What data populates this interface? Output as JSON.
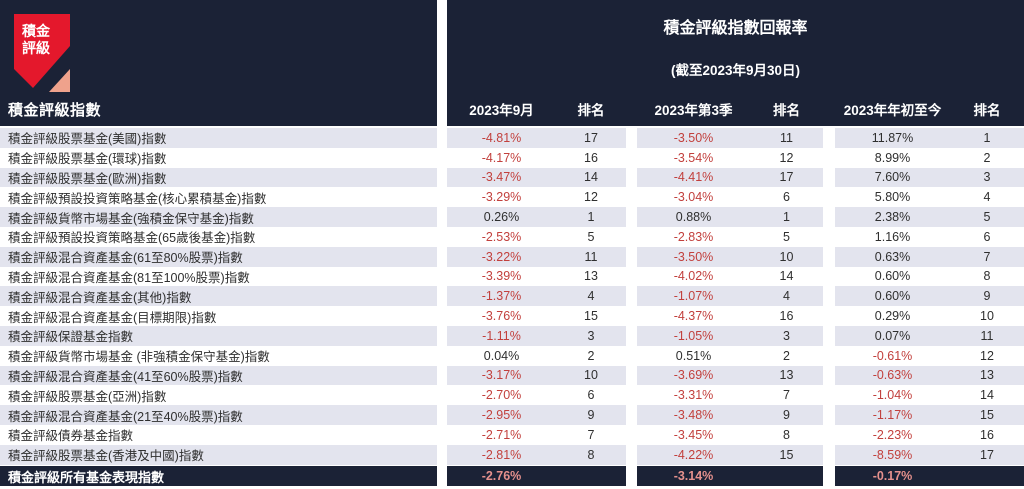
{
  "logo": {
    "line1": "積金",
    "line2": "評級"
  },
  "title_block": {
    "title": "積金評級指數回報率",
    "subtitle": "(截至2023年9月30日)"
  },
  "table_header": {
    "name_col": "積金評級指數",
    "cols": [
      "2023年9月",
      "排名",
      "2023年第3季",
      "排名",
      "2023年年初至今",
      "排名"
    ]
  },
  "colors": {
    "navy": "#1b2236",
    "stripe": "#e3e4ee",
    "negative": "#c2403d",
    "text_dark": "#2f2f2f",
    "total_value": "#e5918d",
    "brand_red": "#e4182c",
    "brand_salmon": "#efa28c"
  },
  "chart_data": {
    "type": "table",
    "title": "積金評級指數回報率",
    "subtitle": "(截至2023年9月30日)",
    "columns": [
      "積金評級指數",
      "2023年9月",
      "排名",
      "2023年第3季",
      "排名",
      "2023年年初至今",
      "排名"
    ],
    "rows": [
      [
        "積金評級股票基金(美國)指數",
        "-4.81%",
        "17",
        "-3.50%",
        "11",
        "11.87%",
        "1"
      ],
      [
        "積金評級股票基金(環球)指數",
        "-4.17%",
        "16",
        "-3.54%",
        "12",
        "8.99%",
        "2"
      ],
      [
        "積金評級股票基金(歐洲)指數",
        "-3.47%",
        "14",
        "-4.41%",
        "17",
        "7.60%",
        "3"
      ],
      [
        "積金評級預設投資策略基金(核心累積基金)指數",
        "-3.29%",
        "12",
        "-3.04%",
        "6",
        "5.80%",
        "4"
      ],
      [
        "積金評級貨幣市場基金(強積金保守基金)指數",
        "0.26%",
        "1",
        "0.88%",
        "1",
        "2.38%",
        "5"
      ],
      [
        "積金評級預設投資策略基金(65歲後基金)指數",
        "-2.53%",
        "5",
        "-2.83%",
        "5",
        "1.16%",
        "6"
      ],
      [
        "積金評級混合資產基金(61至80%股票)指數",
        "-3.22%",
        "11",
        "-3.50%",
        "10",
        "0.63%",
        "7"
      ],
      [
        "積金評級混合資產基金(81至100%股票)指數",
        "-3.39%",
        "13",
        "-4.02%",
        "14",
        "0.60%",
        "8"
      ],
      [
        "積金評級混合資產基金(其他)指數",
        "-1.37%",
        "4",
        "-1.07%",
        "4",
        "0.60%",
        "9"
      ],
      [
        "積金評級混合資產基金(目標期限)指數",
        "-3.76%",
        "15",
        "-4.37%",
        "16",
        "0.29%",
        "10"
      ],
      [
        "積金評級保證基金指數",
        "-1.11%",
        "3",
        "-1.05%",
        "3",
        "0.07%",
        "11"
      ],
      [
        "積金評級貨幣市場基金 (非強積金保守基金)指數",
        "0.04%",
        "2",
        "0.51%",
        "2",
        "-0.61%",
        "12"
      ],
      [
        "積金評級混合資產基金(41至60%股票)指數",
        "-3.17%",
        "10",
        "-3.69%",
        "13",
        "-0.63%",
        "13"
      ],
      [
        "積金評級股票基金(亞洲)指數",
        "-2.70%",
        "6",
        "-3.31%",
        "7",
        "-1.04%",
        "14"
      ],
      [
        "積金評級混合資產基金(21至40%股票)指數",
        "-2.95%",
        "9",
        "-3.48%",
        "9",
        "-1.17%",
        "15"
      ],
      [
        "積金評級債券基金指數",
        "-2.71%",
        "7",
        "-3.45%",
        "8",
        "-2.23%",
        "16"
      ],
      [
        "積金評級股票基金(香港及中國)指數",
        "-2.81%",
        "8",
        "-4.22%",
        "15",
        "-8.59%",
        "17"
      ]
    ],
    "total_row": [
      "積金評級所有基金表現指數",
      "-2.76%",
      "",
      "-3.14%",
      "",
      "-0.17%",
      ""
    ]
  }
}
